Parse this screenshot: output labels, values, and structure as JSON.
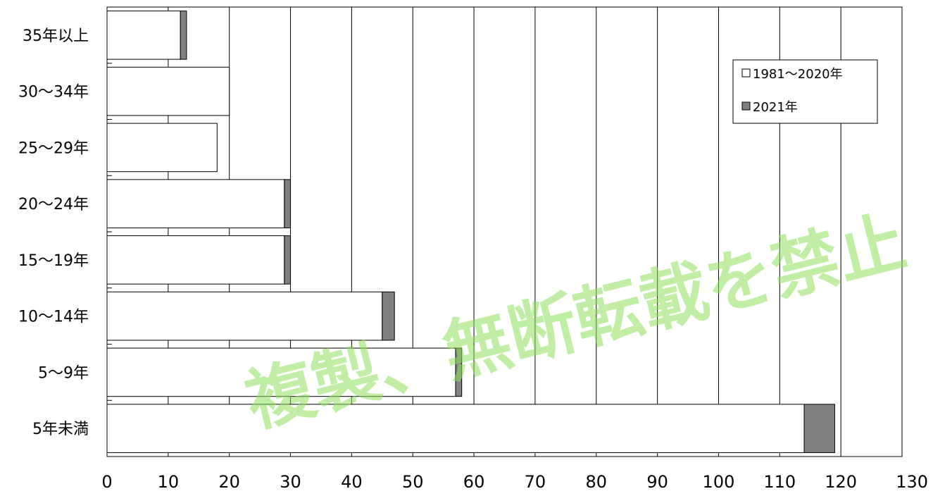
{
  "chart_data": {
    "type": "bar",
    "orientation": "horizontal",
    "stacked": true,
    "categories": [
      "35年以上",
      "30～34年",
      "25～29年",
      "20～24年",
      "15～19年",
      "10～14年",
      "5～9年",
      "5年未満"
    ],
    "series": [
      {
        "name": "1981～2020年",
        "color": "#ffffff",
        "values": [
          12,
          20,
          18,
          29,
          29,
          45,
          57,
          114
        ]
      },
      {
        "name": "2021年",
        "color": "#808080",
        "values": [
          1,
          0,
          0,
          1,
          1,
          2,
          1,
          5
        ]
      }
    ],
    "xlim": [
      0,
      130
    ],
    "xticks": [
      0,
      10,
      20,
      30,
      40,
      50,
      60,
      70,
      80,
      90,
      100,
      110,
      120,
      130
    ],
    "grid": "vertical",
    "legend_position": "top-right"
  },
  "watermark": "複製、無断転載を禁止"
}
